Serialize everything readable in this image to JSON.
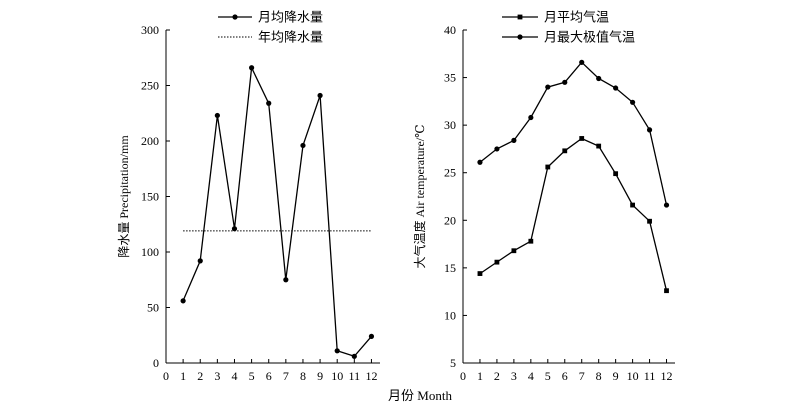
{
  "figure": {
    "shared_xlabel": "月份 Month"
  },
  "chart_data": [
    {
      "type": "line",
      "x": [
        1,
        2,
        3,
        4,
        5,
        6,
        7,
        8,
        9,
        10,
        11,
        12
      ],
      "xlim": [
        0,
        12.5
      ],
      "xticks": [
        0,
        1,
        2,
        3,
        4,
        5,
        6,
        7,
        8,
        9,
        10,
        11,
        12
      ],
      "ylim": [
        0,
        300
      ],
      "yticks": [
        0,
        50,
        100,
        150,
        200,
        250,
        300
      ],
      "ylabel": "降水量 Precipitation/mm",
      "grid": false,
      "legend": "top-center",
      "series": [
        {
          "name": "月均降水量",
          "style": "solid",
          "marker": "circle",
          "values": [
            56,
            92,
            223,
            121,
            266,
            234,
            75,
            196,
            241,
            11,
            6,
            24
          ]
        },
        {
          "name": "年均降水量",
          "style": "dotted",
          "marker": "none",
          "values": [
            119,
            119,
            119,
            119,
            119,
            119,
            119,
            119,
            119,
            119,
            119,
            119
          ]
        }
      ]
    },
    {
      "type": "line",
      "x": [
        1,
        2,
        3,
        4,
        5,
        6,
        7,
        8,
        9,
        10,
        11,
        12
      ],
      "xlim": [
        0,
        12.5
      ],
      "xticks": [
        0,
        1,
        2,
        3,
        4,
        5,
        6,
        7,
        8,
        9,
        10,
        11,
        12
      ],
      "ylim": [
        5,
        40
      ],
      "yticks": [
        5,
        10,
        15,
        20,
        25,
        30,
        35,
        40
      ],
      "ylabel": "大气温度 Air temperature/℃",
      "grid": false,
      "legend": "top-center",
      "series": [
        {
          "name": "月平均气温",
          "style": "solid",
          "marker": "square",
          "values": [
            14.4,
            15.6,
            16.8,
            17.8,
            25.6,
            27.3,
            28.6,
            27.8,
            24.9,
            21.6,
            19.9,
            12.6
          ]
        },
        {
          "name": "月最大极值气温",
          "style": "solid",
          "marker": "circle",
          "values": [
            26.1,
            27.5,
            28.4,
            30.8,
            34.0,
            34.5,
            36.6,
            34.9,
            33.9,
            32.4,
            29.5,
            21.6
          ]
        }
      ]
    }
  ]
}
